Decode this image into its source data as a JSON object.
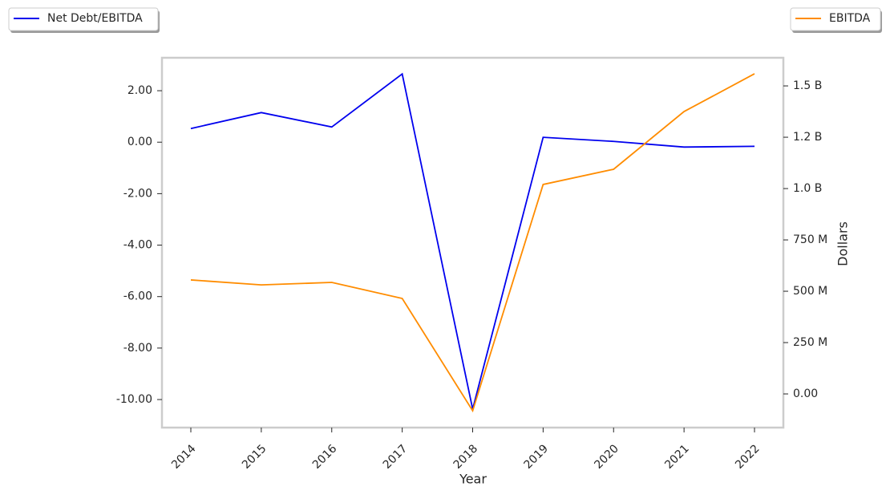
{
  "chart_data": {
    "type": "line",
    "categories": [
      "2014",
      "2015",
      "2016",
      "2017",
      "2018",
      "2019",
      "2020",
      "2021",
      "2022"
    ],
    "x_label": "Year",
    "y2_label": "Dollars",
    "series": [
      {
        "name": "Net Debt/EBITDA",
        "color": "#0000ee",
        "values": [
          0.53,
          1.15,
          0.59,
          2.65,
          -10.37,
          0.19,
          0.03,
          -0.19,
          -0.16
        ]
      },
      {
        "name": "EBITDA",
        "color": "#ff8c00",
        "axis": "y2",
        "values": [
          555000000,
          531000000,
          543000000,
          465000000,
          -82000000,
          1020000000,
          1094000000,
          1375000000,
          1559000000
        ]
      }
    ],
    "ylim": [
      -11.09,
      3.28
    ],
    "yticks": [
      {
        "value": 2,
        "label": "2.00"
      },
      {
        "value": 0,
        "label": "0.00"
      },
      {
        "value": -2,
        "label": "-2.00"
      },
      {
        "value": -4,
        "label": "-4.00"
      },
      {
        "value": -6,
        "label": "-6.00"
      },
      {
        "value": -8,
        "label": "-8.00"
      },
      {
        "value": -10,
        "label": "-10.00"
      }
    ],
    "y2lim": [
      -164000000,
      1637000000
    ],
    "y2ticks": [
      {
        "value": 0,
        "label": "0.00"
      },
      {
        "value": 250000000,
        "label": "250 M"
      },
      {
        "value": 500000000,
        "label": "500 M"
      },
      {
        "value": 750000000,
        "label": "750 M"
      },
      {
        "value": 1000000000,
        "label": "1.0 B"
      },
      {
        "value": 1250000000,
        "label": "1.2 B"
      },
      {
        "value": 1500000000,
        "label": "1.5 B"
      }
    ]
  }
}
